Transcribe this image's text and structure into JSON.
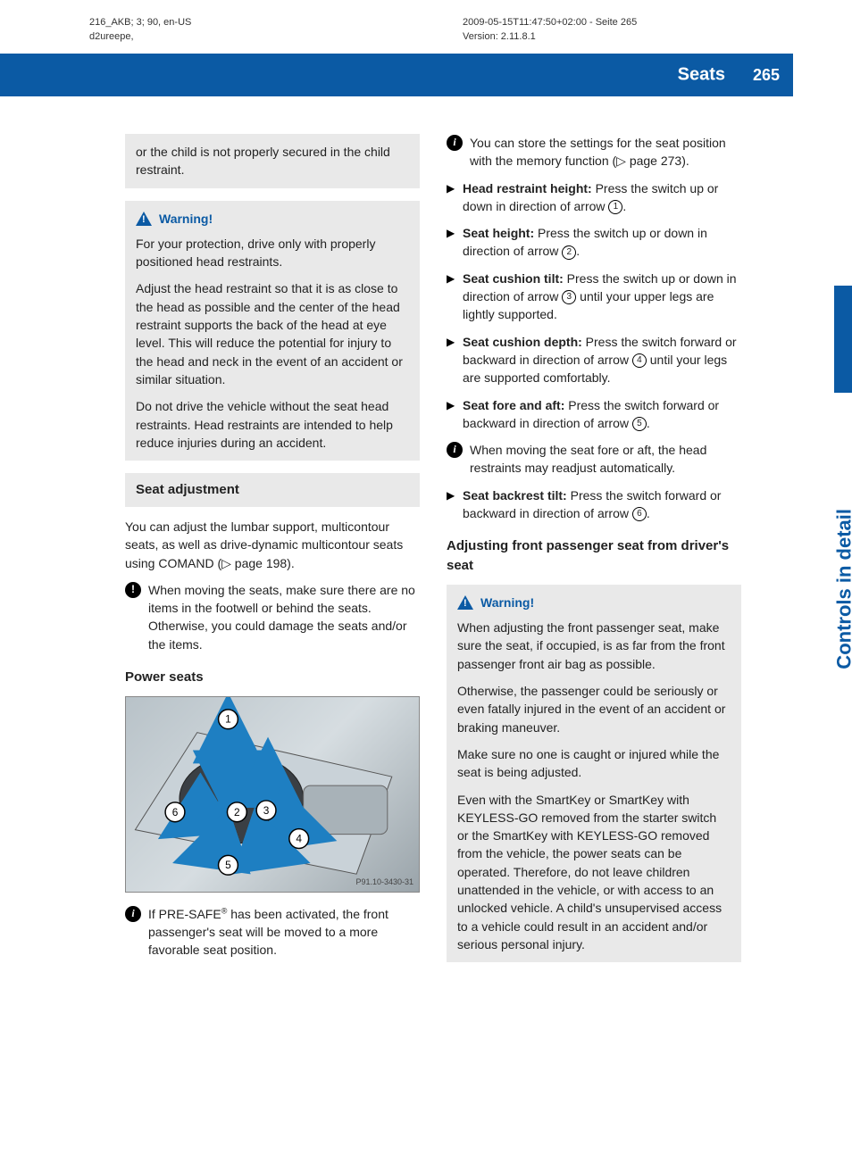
{
  "meta": {
    "left_line1": "216_AKB; 3; 90, en-US",
    "left_line2": "d2ureepe,",
    "right_line1": "2009-05-15T11:47:50+02:00 - Seite 265",
    "right_line2": "Version: 2.11.8.1"
  },
  "header": {
    "section": "Seats",
    "page": "265",
    "side_tab": "Controls in detail",
    "accent_color": "#0b5aa4"
  },
  "left": {
    "carryover": "or the child is not properly secured in the child restraint.",
    "warning1_title": "Warning!",
    "warning1_p1": "For your protection, drive only with properly positioned head restraints.",
    "warning1_p2": "Adjust the head restraint so that it is as close to the head as possible and the center of the head restraint supports the back of the head at eye level. This will reduce the potential for injury to the head and neck in the event of an accident or similar situation.",
    "warning1_p3": "Do not drive the vehicle without the seat head restraints. Head restraints are intended to help reduce injuries during an accident.",
    "seat_adj_hdr": "Seat adjustment",
    "seat_adj_p1": "You can adjust the lumbar support, multicontour seats, as well as drive-dynamic multicontour seats using COMAND (▷ page 198).",
    "seat_adj_note": "When moving the seats, make sure there are no items in the footwell or behind the seats. Otherwise, you could damage the seats and/or the items.",
    "power_seats_hdr": "Power seats",
    "figure_id": "P91.10-3430-31",
    "presafe_note_a": "If PRE-SAFE",
    "presafe_note_b": " has been activated, the front passenger's seat will be moved to a more favorable seat position."
  },
  "right": {
    "info_memory": "You can store the settings for the seat position with the memory function (▷ page 273).",
    "items": [
      {
        "label": "Head restraint height:",
        "text": " Press the switch up or down in direction of arrow ",
        "num": "1",
        "tail": "."
      },
      {
        "label": "Seat height:",
        "text": " Press the switch up or down in direction of arrow ",
        "num": "2",
        "tail": "."
      },
      {
        "label": "Seat cushion tilt:",
        "text": " Press the switch up or down in direction of arrow ",
        "num": "3",
        "tail": " until your upper legs are lightly supported."
      },
      {
        "label": "Seat cushion depth:",
        "text": " Press the switch forward or backward in direction of arrow ",
        "num": "4",
        "tail": " until your legs are supported comfortably."
      },
      {
        "label": "Seat fore and aft:",
        "text": " Press the switch forward or backward in direction of arrow ",
        "num": "5",
        "tail": "."
      }
    ],
    "info_foreaft": "When moving the seat fore or aft, the head restraints may readjust automatically.",
    "backrest": {
      "label": "Seat backrest tilt:",
      "text": " Press the switch forward or backward in direction of arrow ",
      "num": "6",
      "tail": "."
    },
    "adj_front_hdr": "Adjusting front passenger seat from driver's seat",
    "warning2_title": "Warning!",
    "warning2_p1": "When adjusting the front passenger seat, make sure the seat, if occupied, is as far from the front passenger front air bag as possible.",
    "warning2_p2": "Otherwise, the passenger could be seriously or even fatally injured in the event of an accident or braking maneuver.",
    "warning2_p3": "Make sure no one is caught or injured while the seat is being adjusted.",
    "warning2_p4": "Even with the SmartKey or SmartKey with KEYLESS-GO removed from the starter switch or the SmartKey with KEYLESS-GO removed from the vehicle, the power seats can be operated. Therefore, do not leave children unattended in the vehicle, or with access to an unlocked vehicle. A child's unsupervised access to a vehicle could result in an accident and/or serious personal injury."
  },
  "figure": {
    "arrow_color": "#1e7fc2",
    "node_stroke": "#000",
    "callouts": [
      "1",
      "2",
      "3",
      "4",
      "5",
      "6"
    ]
  }
}
